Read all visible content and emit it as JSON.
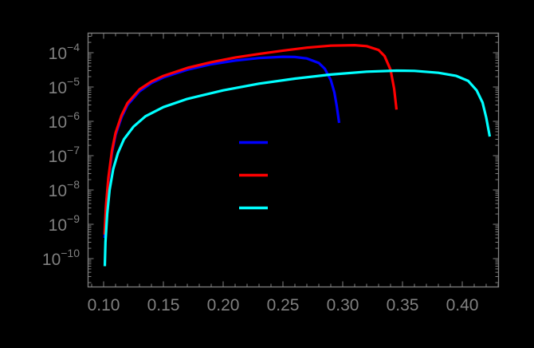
{
  "chart_data": {
    "type": "line",
    "title": "",
    "xlabel": "",
    "ylabel": "",
    "xscale": "linear",
    "yscale": "log",
    "xlim": [
      0.087,
      0.431
    ],
    "ylim": [
      1.5e-11,
      0.00039
    ],
    "grid": false,
    "background": "#000000",
    "axis_color": "#808080",
    "x_ticks": [
      0.1,
      0.15,
      0.2,
      0.25,
      0.3,
      0.35,
      0.4
    ],
    "x_tick_labels": [
      "0.10",
      "0.15",
      "0.20",
      "0.25",
      "0.30",
      "0.35",
      "0.40"
    ],
    "y_ticks": [
      0.0001,
      1e-05,
      1e-06,
      1e-07,
      1e-08,
      1e-09,
      1e-10
    ],
    "y_tick_labels": [
      {
        "base": "10",
        "exp": "−4"
      },
      {
        "base": "10",
        "exp": "−5"
      },
      {
        "base": "10",
        "exp": "−6"
      },
      {
        "base": "10",
        "exp": "−7"
      },
      {
        "base": "10",
        "exp": "−8"
      },
      {
        "base": "10",
        "exp": "−9"
      },
      {
        "base": "10",
        "exp": "−10"
      }
    ],
    "legend": {
      "position": "inside-center",
      "entries": [
        {
          "color": "#0000ff",
          "label": ""
        },
        {
          "color": "#ff0000",
          "label": ""
        },
        {
          "color": "#00ffff",
          "label": ""
        }
      ]
    },
    "series": [
      {
        "name": "blue",
        "color": "#0000ff",
        "x": [
          0.1008,
          0.102,
          0.104,
          0.107,
          0.11,
          0.115,
          0.12,
          0.13,
          0.14,
          0.15,
          0.17,
          0.19,
          0.21,
          0.23,
          0.25,
          0.26,
          0.27,
          0.28,
          0.285,
          0.29,
          0.293,
          0.295,
          0.297
        ],
        "y": [
          4e-10,
          3e-09,
          2e-08,
          1.2e-07,
          4e-07,
          1.3e-06,
          3e-06,
          7.5e-06,
          1.3e-05,
          1.9e-05,
          3.2e-05,
          4.6e-05,
          5.9e-05,
          7e-05,
          7.6e-05,
          7.5e-05,
          6.8e-05,
          5e-05,
          3.4e-05,
          1.6e-05,
          7e-06,
          2.8e-06,
          9e-07
        ]
      },
      {
        "name": "red",
        "color": "#ff0000",
        "x": [
          0.1008,
          0.102,
          0.104,
          0.107,
          0.11,
          0.115,
          0.12,
          0.13,
          0.14,
          0.15,
          0.17,
          0.19,
          0.21,
          0.23,
          0.25,
          0.27,
          0.29,
          0.31,
          0.32,
          0.33,
          0.335,
          0.34,
          0.343,
          0.345
        ],
        "y": [
          5e-10,
          3.5e-09,
          2.3e-08,
          1.4e-07,
          4.6e-07,
          1.5e-06,
          3.4e-06,
          8.5e-06,
          1.45e-05,
          2.1e-05,
          3.6e-05,
          5.3e-05,
          7.2e-05,
          9.2e-05,
          0.000115,
          0.00014,
          0.00016,
          0.000165,
          0.000155,
          0.00012,
          8e-05,
          3.2e-05,
          9e-06,
          2.2e-06
        ]
      },
      {
        "name": "cyan",
        "color": "#00ffff",
        "x": [
          0.101,
          0.1015,
          0.103,
          0.105,
          0.108,
          0.112,
          0.117,
          0.125,
          0.135,
          0.15,
          0.17,
          0.2,
          0.23,
          0.26,
          0.29,
          0.32,
          0.345,
          0.36,
          0.38,
          0.395,
          0.405,
          0.412,
          0.417,
          0.42,
          0.423
        ],
        "y": [
          6e-11,
          3e-10,
          2e-09,
          1e-08,
          4e-08,
          1.2e-07,
          3e-07,
          7e-07,
          1.4e-06,
          2.6e-06,
          4.5e-06,
          8e-06,
          1.25e-05,
          1.75e-05,
          2.3e-05,
          2.8e-05,
          3e-05,
          2.95e-05,
          2.6e-05,
          2.1e-05,
          1.5e-05,
          8e-06,
          3.5e-06,
          1.3e-06,
          3.6e-07
        ]
      }
    ]
  }
}
